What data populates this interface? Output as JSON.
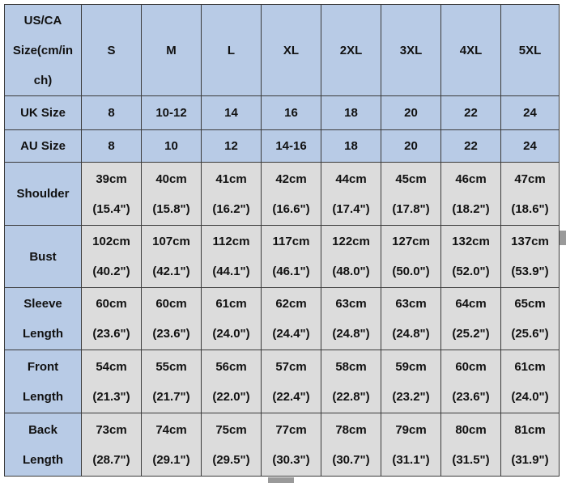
{
  "header": {
    "label": [
      "US/CA",
      "Size(cm/in",
      "ch)"
    ],
    "sizes": [
      "S",
      "M",
      "L",
      "XL",
      "2XL",
      "3XL",
      "4XL",
      "5XL"
    ]
  },
  "rows": [
    {
      "label": [
        "UK Size"
      ],
      "cells": [
        [
          "8"
        ],
        [
          "10-12"
        ],
        [
          "14"
        ],
        [
          "16"
        ],
        [
          "18"
        ],
        [
          "20"
        ],
        [
          "22"
        ],
        [
          "24"
        ]
      ]
    },
    {
      "label": [
        "AU Size"
      ],
      "cells": [
        [
          "8"
        ],
        [
          "10"
        ],
        [
          "12"
        ],
        [
          "14-16"
        ],
        [
          "18"
        ],
        [
          "20"
        ],
        [
          "22"
        ],
        [
          "24"
        ]
      ]
    },
    {
      "label": [
        "Shoulder"
      ],
      "cells": [
        [
          "39cm",
          "(15.4\")"
        ],
        [
          "40cm",
          "(15.8\")"
        ],
        [
          "41cm",
          "(16.2\")"
        ],
        [
          "42cm",
          "(16.6\")"
        ],
        [
          "44cm",
          "(17.4\")"
        ],
        [
          "45cm",
          "(17.8\")"
        ],
        [
          "46cm",
          "(18.2\")"
        ],
        [
          "47cm",
          "(18.6\")"
        ]
      ]
    },
    {
      "label": [
        "Bust"
      ],
      "cells": [
        [
          "102cm",
          "(40.2\")"
        ],
        [
          "107cm",
          "(42.1\")"
        ],
        [
          "112cm",
          "(44.1\")"
        ],
        [
          "117cm",
          "(46.1\")"
        ],
        [
          "122cm",
          "(48.0\")"
        ],
        [
          "127cm",
          "(50.0\")"
        ],
        [
          "132cm",
          "(52.0\")"
        ],
        [
          "137cm",
          "(53.9\")"
        ]
      ]
    },
    {
      "label": [
        "Sleeve",
        "Length"
      ],
      "cells": [
        [
          "60cm",
          "(23.6\")"
        ],
        [
          "60cm",
          "(23.6\")"
        ],
        [
          "61cm",
          "(24.0\")"
        ],
        [
          "62cm",
          "(24.4\")"
        ],
        [
          "63cm",
          "(24.8\")"
        ],
        [
          "63cm",
          "(24.8\")"
        ],
        [
          "64cm",
          "(25.2\")"
        ],
        [
          "65cm",
          "(25.6\")"
        ]
      ]
    },
    {
      "label": [
        "Front",
        "Length"
      ],
      "cells": [
        [
          "54cm",
          "(21.3\")"
        ],
        [
          "55cm",
          "(21.7\")"
        ],
        [
          "56cm",
          "(22.0\")"
        ],
        [
          "57cm",
          "(22.4\")"
        ],
        [
          "58cm",
          "(22.8\")"
        ],
        [
          "59cm",
          "(23.2\")"
        ],
        [
          "60cm",
          "(23.6\")"
        ],
        [
          "61cm",
          "(24.0\")"
        ]
      ]
    },
    {
      "label": [
        "Back",
        "Length"
      ],
      "cells": [
        [
          "73cm",
          "(28.7\")"
        ],
        [
          "74cm",
          "(29.1\")"
        ],
        [
          "75cm",
          "(29.5\")"
        ],
        [
          "77cm",
          "(30.3\")"
        ],
        [
          "78cm",
          "(30.7\")"
        ],
        [
          "79cm",
          "(31.1\")"
        ],
        [
          "80cm",
          "(31.5\")"
        ],
        [
          "81cm",
          "(31.9\")"
        ]
      ]
    }
  ]
}
